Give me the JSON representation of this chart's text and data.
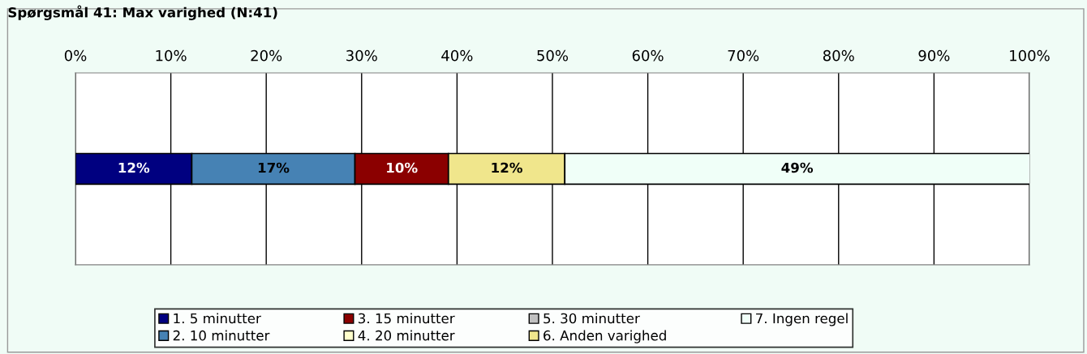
{
  "chart_data": {
    "type": "bar",
    "orientation": "horizontal",
    "stacked": true,
    "title": "Spørgsmål 41: Max varighed (N:41)",
    "categories": [
      null
    ],
    "series": [
      {
        "name": "1. 5 minutter",
        "color": "#000080",
        "values": [
          12.2
        ],
        "value_labels": [
          "12%"
        ]
      },
      {
        "name": "2. 10 minutter",
        "color": "#4682b4",
        "values": [
          17.1
        ],
        "value_labels": [
          "17%"
        ]
      },
      {
        "name": "3. 15 minutter",
        "color": "#8b0000",
        "values": [
          9.8
        ],
        "value_labels": [
          "10%"
        ]
      },
      {
        "name": "4. 20 minutter",
        "color": "#ffffcc",
        "values": [
          0
        ],
        "value_labels": [
          null
        ]
      },
      {
        "name": "5. 30 minutter",
        "color": "#c0c0c0",
        "values": [
          0
        ],
        "value_labels": [
          null
        ]
      },
      {
        "name": "6. Anden varighed",
        "color": "#f0e68c",
        "values": [
          12.2
        ],
        "value_labels": [
          "12%"
        ]
      },
      {
        "name": "7. Ingen regel",
        "color": "#f0fff8",
        "values": [
          48.8
        ],
        "value_labels": [
          "49%"
        ]
      }
    ],
    "xlim": [
      0,
      100
    ],
    "xticks": [
      {
        "value": 0,
        "label": "0%"
      },
      {
        "value": 10,
        "label": "10%"
      },
      {
        "value": 20,
        "label": "20%"
      },
      {
        "value": 30,
        "label": "30%"
      },
      {
        "value": 40,
        "label": "40%"
      },
      {
        "value": 50,
        "label": "50%"
      },
      {
        "value": 60,
        "label": "60%"
      },
      {
        "value": 70,
        "label": "70%"
      },
      {
        "value": 80,
        "label": "80%"
      },
      {
        "value": 90,
        "label": "90%"
      },
      {
        "value": 100,
        "label": "100%"
      }
    ],
    "grid": "x",
    "legend": "bottom"
  }
}
